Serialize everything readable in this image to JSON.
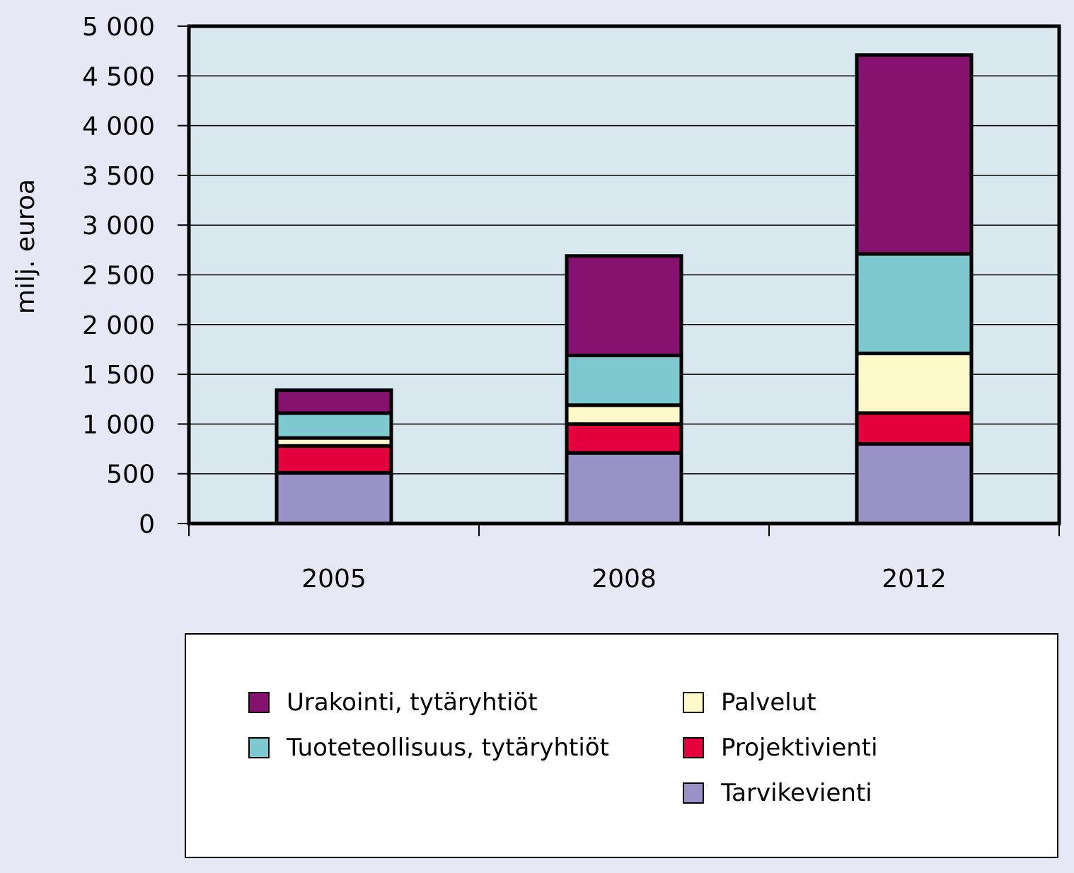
{
  "chart_data": {
    "type": "bar",
    "stacked": true,
    "categories": [
      "2005",
      "2008",
      "2012"
    ],
    "series": [
      {
        "name": "Tarvikevienti",
        "color": "#9892c6",
        "values": [
          510,
          710,
          800
        ]
      },
      {
        "name": "Projektivienti",
        "color": "#e4003c",
        "values": [
          270,
          290,
          310
        ]
      },
      {
        "name": "Palvelut",
        "color": "#fdf9c8",
        "values": [
          80,
          190,
          600
        ]
      },
      {
        "name": "Tuoteteollisuus, tytäryhtiöt",
        "color": "#7ec8d0",
        "values": [
          250,
          500,
          1000
        ]
      },
      {
        "name": "Urakointi, tytäryhtiöt",
        "color": "#861270",
        "values": [
          230,
          1000,
          2000
        ]
      }
    ],
    "ylabel": "milj. euroa",
    "ylim": [
      0,
      5000
    ],
    "yticks": [
      0,
      500,
      1000,
      1500,
      2000,
      2500,
      3000,
      3500,
      4000,
      4500,
      5000
    ],
    "ytick_labels": [
      "0",
      "500",
      "1 000",
      "1 500",
      "2 000",
      "2 500",
      "3 000",
      "3 500",
      "4 000",
      "4 500",
      "5 000"
    ],
    "grid": true,
    "plot_background": "#d9e7ef",
    "legend_position": "bottom"
  },
  "legend": {
    "left_column": [
      {
        "label": "Urakointi, tytäryhtiöt",
        "color": "#861270"
      },
      {
        "label": "Tuoteteollisuus, tytäryhtiöt",
        "color": "#7ec8d0"
      }
    ],
    "right_column": [
      {
        "label": "Palvelut",
        "color": "#fdf9c8"
      },
      {
        "label": "Projektivienti",
        "color": "#e4003c"
      },
      {
        "label": "Tarvikevienti",
        "color": "#9892c6"
      }
    ]
  }
}
